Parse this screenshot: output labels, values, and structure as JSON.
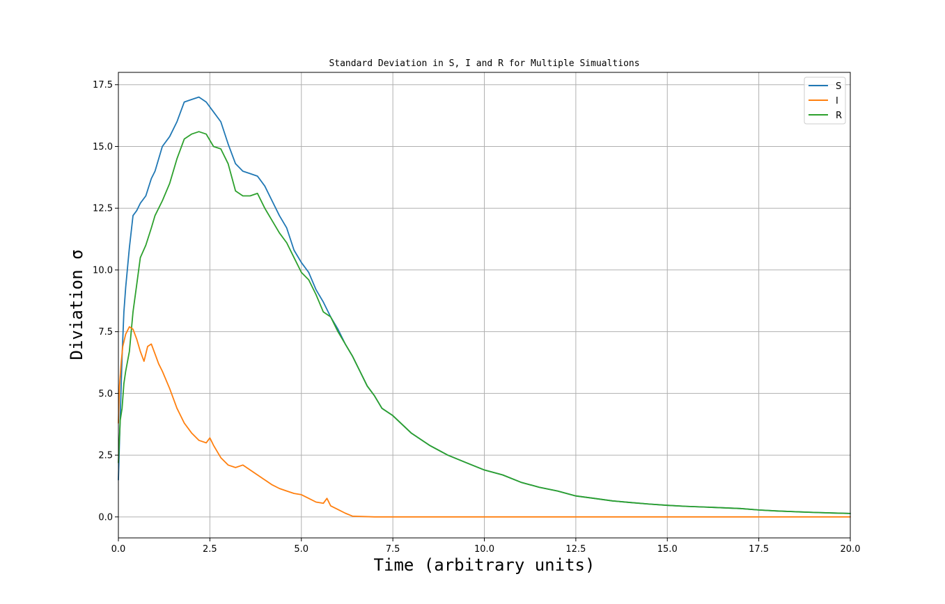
{
  "chart_data": {
    "type": "line",
    "title": "Standard Deviation in S, I and R for Multiple Simualtions",
    "xlabel": "Time (arbitrary units)",
    "ylabel": "Diviation σ",
    "xlim": [
      0,
      20
    ],
    "ylim": [
      -0.85,
      18.0
    ],
    "xticks": [
      0,
      2.5,
      5,
      7.5,
      10,
      12.5,
      15,
      17.5,
      20
    ],
    "xtick_labels": [
      "0.0",
      "2.5",
      "5.0",
      "7.5",
      "10.0",
      "12.5",
      "15.0",
      "17.5",
      "20.0"
    ],
    "yticks": [
      0,
      2.5,
      5,
      7.5,
      10,
      12.5,
      15,
      17.5
    ],
    "ytick_labels": [
      "0.0",
      "2.5",
      "5.0",
      "7.5",
      "10.0",
      "12.5",
      "15.0",
      "17.5"
    ],
    "grid": true,
    "legend_position": "top-right",
    "series": [
      {
        "name": "S",
        "color": "#1f77b4",
        "x": [
          0,
          0.05,
          0.1,
          0.15,
          0.2,
          0.3,
          0.4,
          0.5,
          0.6,
          0.75,
          0.9,
          1.0,
          1.2,
          1.4,
          1.6,
          1.8,
          2.0,
          2.2,
          2.4,
          2.6,
          2.8,
          3.0,
          3.2,
          3.4,
          3.6,
          3.8,
          4.0,
          4.2,
          4.4,
          4.6,
          4.8,
          5.0,
          5.2,
          5.4,
          5.6,
          5.8,
          6.0,
          6.2,
          6.4,
          6.6,
          6.8,
          7.0,
          7.2,
          7.5,
          8.0,
          8.5,
          9.0,
          9.5,
          10.0,
          10.5,
          11.0,
          11.5,
          12.0,
          12.5,
          13.0,
          13.5,
          14.0,
          14.5,
          15.0,
          15.5,
          16.0,
          16.5,
          17.0,
          17.5,
          18.0,
          18.5,
          19.0,
          19.5,
          20.0
        ],
        "y": [
          1.5,
          4.0,
          6.5,
          8.3,
          9.3,
          10.9,
          12.2,
          12.4,
          12.7,
          13.0,
          13.7,
          14.0,
          15.0,
          15.4,
          16.0,
          16.8,
          16.9,
          17.0,
          16.8,
          16.4,
          16.0,
          15.1,
          14.3,
          14.0,
          13.9,
          13.8,
          13.4,
          12.8,
          12.2,
          11.7,
          10.8,
          10.3,
          9.9,
          9.2,
          8.7,
          8.1,
          7.6,
          7.0,
          6.5,
          5.9,
          5.3,
          4.9,
          4.4,
          4.1,
          3.4,
          2.9,
          2.5,
          2.2,
          1.9,
          1.7,
          1.4,
          1.2,
          1.05,
          0.85,
          0.75,
          0.65,
          0.58,
          0.52,
          0.47,
          0.43,
          0.4,
          0.37,
          0.34,
          0.28,
          0.24,
          0.21,
          0.18,
          0.16,
          0.14
        ]
      },
      {
        "name": "I",
        "color": "#ff7f0e",
        "x": [
          0,
          0.03,
          0.08,
          0.12,
          0.2,
          0.3,
          0.4,
          0.5,
          0.6,
          0.7,
          0.8,
          0.9,
          1.0,
          1.1,
          1.2,
          1.4,
          1.6,
          1.8,
          2.0,
          2.2,
          2.4,
          2.5,
          2.6,
          2.8,
          3.0,
          3.2,
          3.4,
          3.6,
          3.8,
          4.0,
          4.2,
          4.4,
          4.6,
          4.8,
          5.0,
          5.2,
          5.4,
          5.6,
          5.7,
          5.8,
          6.0,
          6.2,
          6.4,
          7.0,
          8.0,
          10.0,
          12.0,
          14.0,
          16.0,
          18.0,
          20.0
        ],
        "y": [
          3.8,
          5.3,
          6.3,
          6.9,
          7.4,
          7.7,
          7.6,
          7.2,
          6.7,
          6.3,
          6.9,
          7.0,
          6.6,
          6.2,
          5.9,
          5.2,
          4.4,
          3.8,
          3.4,
          3.1,
          3.0,
          3.2,
          2.9,
          2.4,
          2.1,
          2.0,
          2.1,
          1.9,
          1.7,
          1.5,
          1.3,
          1.15,
          1.05,
          0.95,
          0.9,
          0.75,
          0.6,
          0.55,
          0.75,
          0.45,
          0.3,
          0.15,
          0.03,
          0.0,
          0.0,
          0.0,
          0.0,
          0.0,
          0.0,
          0.0,
          0.0
        ]
      },
      {
        "name": "R",
        "color": "#2ca02c",
        "x": [
          0,
          0.05,
          0.1,
          0.15,
          0.2,
          0.3,
          0.4,
          0.5,
          0.6,
          0.75,
          0.9,
          1.0,
          1.2,
          1.4,
          1.6,
          1.8,
          2.0,
          2.2,
          2.4,
          2.6,
          2.8,
          3.0,
          3.2,
          3.4,
          3.6,
          3.8,
          4.0,
          4.2,
          4.4,
          4.6,
          4.8,
          5.0,
          5.2,
          5.4,
          5.6,
          5.8,
          6.0,
          6.2,
          6.4,
          6.6,
          6.8,
          7.0,
          7.2,
          7.5,
          8.0,
          8.5,
          9.0,
          9.5,
          10.0,
          10.5,
          11.0,
          11.5,
          12.0,
          12.5,
          13.0,
          13.5,
          14.0,
          14.5,
          15.0,
          15.5,
          16.0,
          16.5,
          17.0,
          17.5,
          18.0,
          18.5,
          19.0,
          19.5,
          20.0
        ],
        "y": [
          2.2,
          3.9,
          4.4,
          5.4,
          5.9,
          6.7,
          8.3,
          9.4,
          10.5,
          11.0,
          11.7,
          12.2,
          12.8,
          13.5,
          14.5,
          15.3,
          15.5,
          15.6,
          15.5,
          15.0,
          14.9,
          14.3,
          13.2,
          13.0,
          13.0,
          13.1,
          12.5,
          12.0,
          11.5,
          11.1,
          10.5,
          9.9,
          9.6,
          9.0,
          8.3,
          8.1,
          7.5,
          7.0,
          6.5,
          5.9,
          5.3,
          4.9,
          4.4,
          4.1,
          3.4,
          2.9,
          2.5,
          2.2,
          1.9,
          1.7,
          1.4,
          1.2,
          1.05,
          0.85,
          0.75,
          0.65,
          0.58,
          0.52,
          0.47,
          0.43,
          0.4,
          0.37,
          0.34,
          0.28,
          0.24,
          0.21,
          0.18,
          0.16,
          0.14
        ]
      }
    ]
  }
}
